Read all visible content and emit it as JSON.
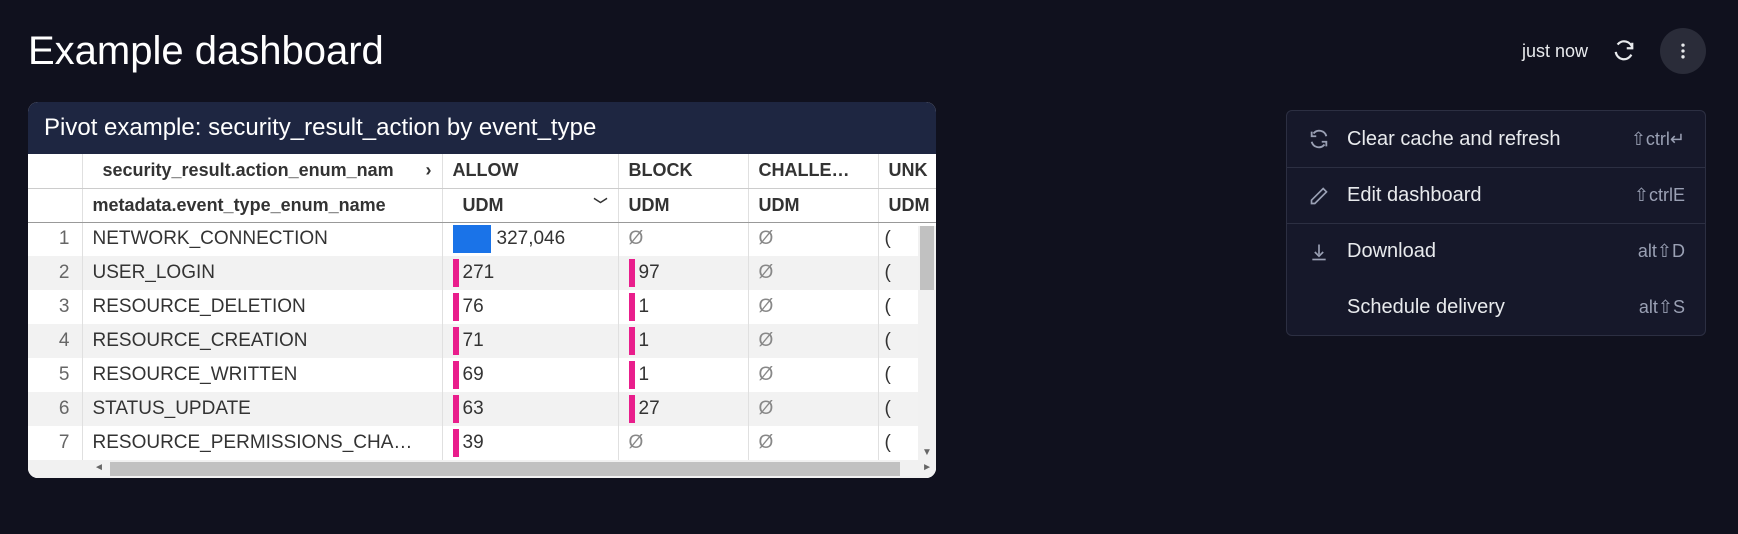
{
  "header": {
    "title": "Example dashboard",
    "timestamp": "just now"
  },
  "panel": {
    "title": "Pivot example: security_result_action by event_type",
    "dim1_header": "security_result.action_enum_nam",
    "dim2_header": "metadata.event_type_enum_name",
    "measure_label": "UDM",
    "columns": [
      "ALLOW",
      "BLOCK",
      "CHALLE…",
      "UNK"
    ],
    "col_sublabels": [
      "UDM",
      "UDM",
      "UDM",
      "UDM"
    ],
    "null_symbol": "Ø",
    "bar_colors": {
      "pink": "#e91e8c",
      "blue": "#1a73e8"
    },
    "rows": [
      {
        "n": "1",
        "name": "NETWORK_CONNECTION",
        "allow": "327,046",
        "allow_bar": "blue",
        "block": "Ø",
        "block_bar": null,
        "chal": "Ø",
        "unk": "("
      },
      {
        "n": "2",
        "name": "USER_LOGIN",
        "allow": "271",
        "allow_bar": "pink",
        "block": "97",
        "block_bar": "pink",
        "chal": "Ø",
        "unk": "("
      },
      {
        "n": "3",
        "name": "RESOURCE_DELETION",
        "allow": "76",
        "allow_bar": "pink",
        "block": "1",
        "block_bar": "pink",
        "chal": "Ø",
        "unk": "("
      },
      {
        "n": "4",
        "name": "RESOURCE_CREATION",
        "allow": "71",
        "allow_bar": "pink",
        "block": "1",
        "block_bar": "pink",
        "chal": "Ø",
        "unk": "("
      },
      {
        "n": "5",
        "name": "RESOURCE_WRITTEN",
        "allow": "69",
        "allow_bar": "pink",
        "block": "1",
        "block_bar": "pink",
        "chal": "Ø",
        "unk": "("
      },
      {
        "n": "6",
        "name": "STATUS_UPDATE",
        "allow": "63",
        "allow_bar": "pink",
        "block": "27",
        "block_bar": "pink",
        "chal": "Ø",
        "unk": "("
      },
      {
        "n": "7",
        "name": "RESOURCE_PERMISSIONS_CHA…",
        "allow": "39",
        "allow_bar": "pink",
        "block": "Ø",
        "block_bar": null,
        "chal": "Ø",
        "unk": "("
      }
    ]
  },
  "menu": {
    "items": [
      {
        "icon": "refresh-sync-icon",
        "label": "Clear cache and refresh",
        "shortcut": "⇧ctrl↵"
      },
      {
        "icon": "pencil-icon",
        "label": "Edit dashboard",
        "shortcut": "⇧ctrlE"
      },
      {
        "icon": "download-icon",
        "label": "Download",
        "shortcut": "alt⇧D"
      },
      {
        "icon": "blank",
        "label": "Schedule delivery",
        "shortcut": "alt⇧S"
      }
    ]
  }
}
